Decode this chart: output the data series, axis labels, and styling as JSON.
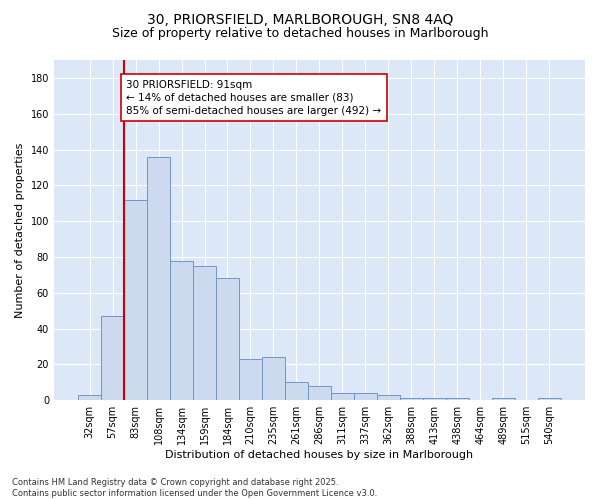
{
  "title1": "30, PRIORSFIELD, MARLBOROUGH, SN8 4AQ",
  "title2": "Size of property relative to detached houses in Marlborough",
  "xlabel": "Distribution of detached houses by size in Marlborough",
  "ylabel": "Number of detached properties",
  "footer1": "Contains HM Land Registry data © Crown copyright and database right 2025.",
  "footer2": "Contains public sector information licensed under the Open Government Licence v3.0.",
  "bar_labels": [
    "32sqm",
    "57sqm",
    "83sqm",
    "108sqm",
    "134sqm",
    "159sqm",
    "184sqm",
    "210sqm",
    "235sqm",
    "261sqm",
    "286sqm",
    "311sqm",
    "337sqm",
    "362sqm",
    "388sqm",
    "413sqm",
    "438sqm",
    "464sqm",
    "489sqm",
    "515sqm",
    "540sqm"
  ],
  "bar_values": [
    3,
    47,
    112,
    136,
    78,
    75,
    68,
    23,
    24,
    10,
    8,
    4,
    4,
    3,
    1,
    1,
    1,
    0,
    1,
    0,
    1
  ],
  "bar_color": "#cdd9ee",
  "bar_edge_color": "#7096c8",
  "vline_color": "#cc0000",
  "vline_x_index": 2,
  "annotation_text": "30 PRIORSFIELD: 91sqm\n← 14% of detached houses are smaller (83)\n85% of semi-detached houses are larger (492) →",
  "annotation_box_color": "#cc0000",
  "ylim": [
    0,
    190
  ],
  "yticks": [
    0,
    20,
    40,
    60,
    80,
    100,
    120,
    140,
    160,
    180
  ],
  "background_color": "#dce8f8",
  "grid_color": "#ffffff",
  "title1_fontsize": 10,
  "title2_fontsize": 9,
  "axis_label_fontsize": 8,
  "tick_fontsize": 7,
  "annotation_fontsize": 7.5,
  "footer_fontsize": 6,
  "bar_width": 1.0
}
